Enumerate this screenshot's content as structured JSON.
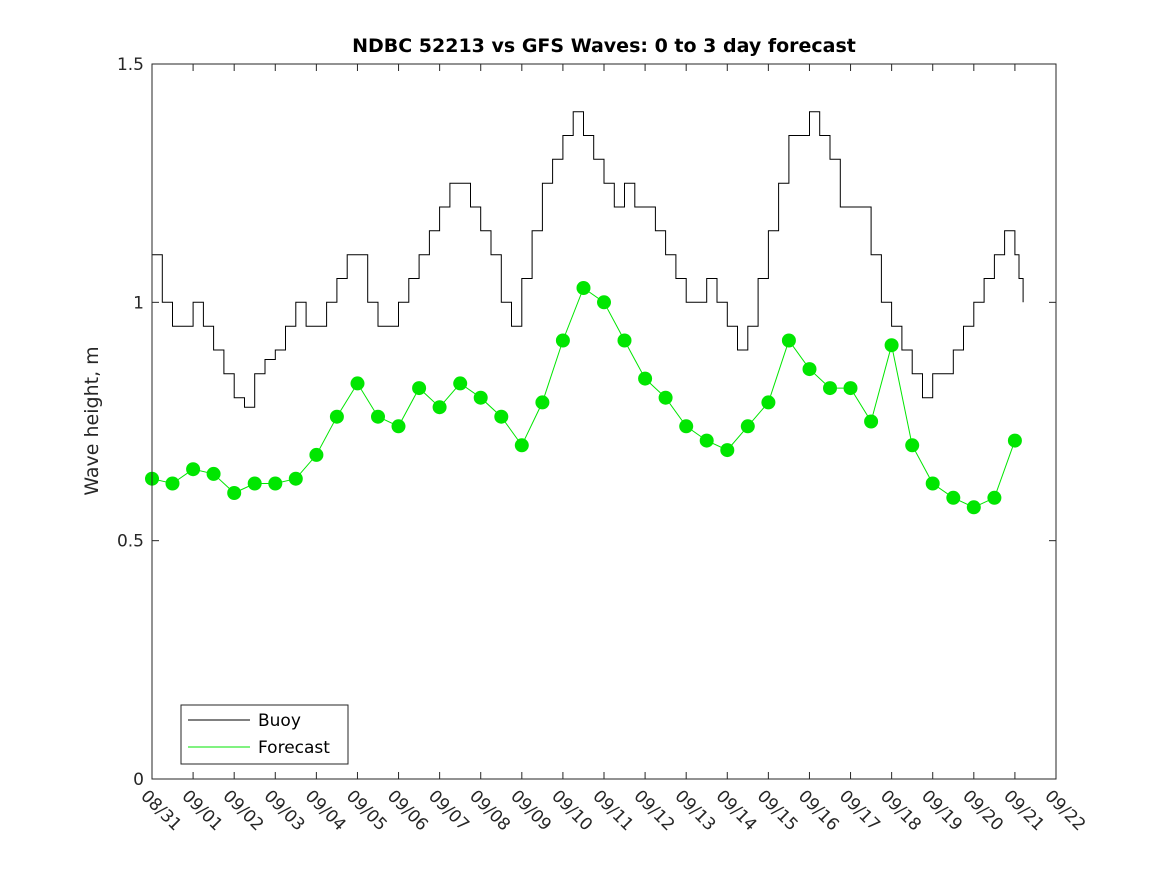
{
  "chart_data": {
    "type": "line",
    "title": "NDBC 52213 vs GFS Waves: 0 to 3 day forecast",
    "xlabel": "",
    "ylabel": "Wave height, m",
    "x_tick_labels": [
      "08/31",
      "09/01",
      "09/02",
      "09/03",
      "09/04",
      "09/05",
      "09/06",
      "09/07",
      "09/08",
      "09/09",
      "09/10",
      "09/11",
      "09/12",
      "09/13",
      "09/14",
      "09/15",
      "09/16",
      "09/17",
      "09/18",
      "09/19",
      "09/20",
      "09/21",
      "09/22"
    ],
    "x_range_days": [
      0,
      22
    ],
    "ylim": [
      0,
      1.5
    ],
    "y_ticks": [
      0,
      0.5,
      1,
      1.5
    ],
    "y_tick_labels": [
      "0",
      "0.5",
      "1",
      "1.5"
    ],
    "legend": {
      "placement": "bottom-left",
      "entries": [
        {
          "label": "Buoy",
          "color": "#000000"
        },
        {
          "label": "Forecast",
          "color": "#00e600"
        }
      ]
    },
    "series": [
      {
        "name": "Buoy",
        "color": "#000000",
        "x_days": [
          0,
          0.25,
          0.5,
          0.75,
          1,
          1.25,
          1.5,
          1.75,
          2,
          2.25,
          2.5,
          2.75,
          3,
          3.25,
          3.5,
          3.75,
          4,
          4.25,
          4.5,
          4.75,
          5,
          5.25,
          5.5,
          5.75,
          6,
          6.25,
          6.5,
          6.75,
          7,
          7.25,
          7.5,
          7.75,
          8,
          8.25,
          8.5,
          8.75,
          9,
          9.25,
          9.5,
          9.75,
          10,
          10.25,
          10.5,
          10.75,
          11,
          11.25,
          11.5,
          11.75,
          12,
          12.25,
          12.5,
          12.75,
          13,
          13.25,
          13.5,
          13.75,
          14,
          14.25,
          14.5,
          14.75,
          15,
          15.25,
          15.5,
          15.75,
          16,
          16.25,
          16.5,
          16.75,
          17,
          17.25,
          17.5,
          17.75,
          18,
          18.25,
          18.5,
          18.75,
          19,
          19.25,
          19.5,
          19.75,
          20,
          20.25,
          20.5,
          20.75,
          21,
          21.1,
          21.2
        ],
        "values": [
          1.1,
          1.0,
          0.95,
          0.95,
          1.0,
          0.95,
          0.9,
          0.85,
          0.8,
          0.78,
          0.85,
          0.88,
          0.9,
          0.95,
          1.0,
          0.95,
          0.95,
          1.0,
          1.05,
          1.1,
          1.1,
          1.0,
          0.95,
          0.95,
          1.0,
          1.05,
          1.1,
          1.15,
          1.2,
          1.25,
          1.25,
          1.2,
          1.15,
          1.1,
          1.0,
          0.95,
          1.05,
          1.15,
          1.25,
          1.3,
          1.35,
          1.4,
          1.35,
          1.3,
          1.25,
          1.2,
          1.25,
          1.2,
          1.2,
          1.15,
          1.1,
          1.05,
          1.0,
          1.0,
          1.05,
          1.0,
          0.95,
          0.9,
          0.95,
          1.05,
          1.15,
          1.25,
          1.35,
          1.35,
          1.4,
          1.35,
          1.3,
          1.2,
          1.2,
          1.2,
          1.1,
          1.0,
          0.95,
          0.9,
          0.85,
          0.8,
          0.85,
          0.85,
          0.9,
          0.95,
          1.0,
          1.05,
          1.1,
          1.15,
          1.1,
          1.05,
          1.0
        ]
      },
      {
        "name": "Forecast",
        "color": "#00e600",
        "markers": true,
        "x_days": [
          0,
          0.5,
          1,
          1.5,
          2,
          2.5,
          3,
          3.5,
          4,
          4.5,
          5,
          5.5,
          6,
          6.5,
          7,
          7.5,
          8,
          8.5,
          9,
          9.5,
          10,
          10.5,
          11,
          11.5,
          12,
          12.5,
          13,
          13.5,
          14,
          14.5,
          15,
          15.5,
          16,
          16.5,
          17,
          17.5,
          18,
          18.5,
          19,
          19.5,
          20,
          20.5,
          21
        ],
        "values": [
          0.63,
          0.62,
          0.65,
          0.64,
          0.6,
          0.62,
          0.62,
          0.63,
          0.68,
          0.76,
          0.83,
          0.76,
          0.74,
          0.82,
          0.78,
          0.83,
          0.8,
          0.76,
          0.7,
          0.79,
          0.92,
          1.03,
          1.0,
          0.92,
          0.84,
          0.8,
          0.74,
          0.71,
          0.69,
          0.74,
          0.79,
          0.92,
          0.86,
          0.82,
          0.82,
          0.75,
          0.91,
          0.7,
          0.62,
          0.59,
          0.57,
          0.59,
          0.71
        ]
      }
    ]
  }
}
